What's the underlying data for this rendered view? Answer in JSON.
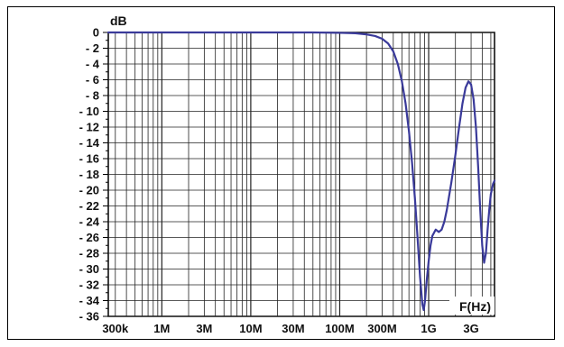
{
  "chart_data": {
    "type": "line",
    "title": "",
    "ylabel": "dB",
    "xlabel": "F(Hz)",
    "xscale": "log",
    "xlim": [
      250000,
      5500000000
    ],
    "ylim": [
      -36,
      0
    ],
    "grid": true,
    "y_ticks": [
      0,
      -2,
      -4,
      -6,
      -8,
      -10,
      -12,
      -14,
      -16,
      -18,
      -20,
      -22,
      -24,
      -26,
      -28,
      -30,
      -32,
      -34,
      -36
    ],
    "y_tick_labels": [
      "0",
      "- 2",
      "- 4",
      "- 6",
      "- 8",
      "- 10",
      "- 12",
      "- 14",
      "- 16",
      "- 18",
      "- 20",
      "- 22",
      "- 24",
      "- 26",
      "- 28",
      "- 30",
      "- 32",
      "- 34",
      "- 36"
    ],
    "x_ticks": [
      300000,
      1000000,
      3000000,
      10000000,
      30000000,
      100000000,
      300000000,
      1000000000,
      3000000000
    ],
    "x_tick_labels": [
      "300k",
      "1M",
      "3M",
      "10M",
      "30M",
      "100M",
      "300M",
      "1G",
      "3G"
    ],
    "line_color": "#3a3a9a",
    "series": [
      {
        "x": [
          250000,
          1000000,
          10000000,
          50000000,
          100000000,
          150000000,
          200000000,
          250000000,
          300000000,
          350000000,
          400000000,
          450000000,
          500000000,
          550000000,
          600000000,
          650000000,
          700000000,
          750000000,
          800000000,
          850000000,
          880000000,
          910000000,
          950000000,
          1000000000,
          1050000000,
          1100000000,
          1200000000,
          1300000000,
          1400000000,
          1500000000,
          1600000000,
          1800000000,
          2000000000,
          2200000000,
          2400000000,
          2600000000,
          2800000000,
          3000000000,
          3200000000,
          3400000000,
          3600000000,
          3800000000,
          4000000000,
          4200000000,
          4400000000,
          4600000000,
          4800000000,
          5000000000,
          5300000000,
          5500000000
        ],
        "y": [
          0,
          0,
          0,
          0,
          -0.05,
          -0.1,
          -0.25,
          -0.45,
          -0.8,
          -1.4,
          -2.4,
          -4.0,
          -6.2,
          -9.0,
          -12.5,
          -16.5,
          -21.0,
          -26.0,
          -31.0,
          -34.5,
          -35.2,
          -34.0,
          -31.5,
          -29.0,
          -27.0,
          -25.8,
          -25.0,
          -25.3,
          -25.0,
          -24.0,
          -22.5,
          -19.0,
          -15.5,
          -12.0,
          -9.0,
          -7.0,
          -6.2,
          -6.6,
          -8.5,
          -12.0,
          -17.0,
          -22.5,
          -27.0,
          -29.2,
          -28.0,
          -25.0,
          -22.5,
          -20.5,
          -19.2,
          -18.8
        ]
      }
    ]
  }
}
